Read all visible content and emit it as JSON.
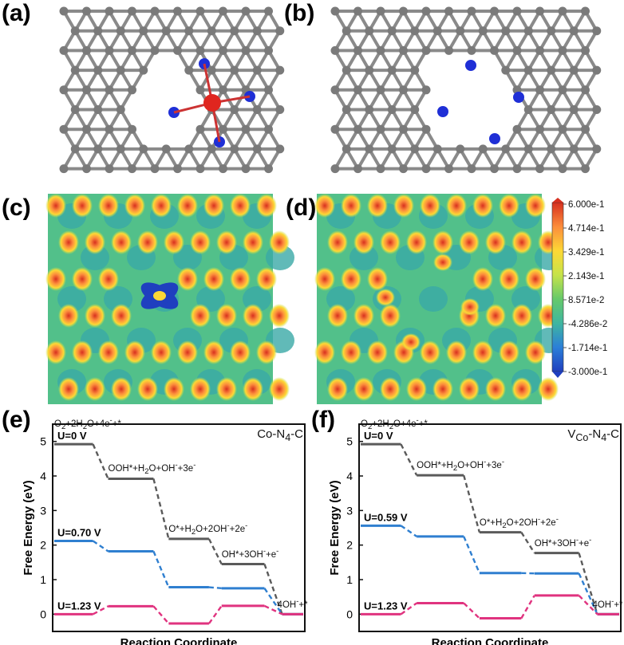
{
  "panels": {
    "a": "(a)",
    "b": "(b)",
    "c": "(c)",
    "d": "(d)",
    "e": "(e)",
    "f": "(f)"
  },
  "colorbar": {
    "ticks": [
      "6.000e-1",
      "4.714e-1",
      "3.429e-1",
      "2.143e-1",
      "8.571e-2",
      "-4.286e-2",
      "-1.714e-1",
      "-3.000e-1"
    ],
    "colors": [
      "#d7301f",
      "#fc8d3c",
      "#fdd835",
      "#c6e34a",
      "#66c96a",
      "#3fb6a0",
      "#2b7fd8",
      "#1f3fbf"
    ]
  },
  "atom_colors": {
    "carbon": "#7a7a7a",
    "nitrogen": "#1f2fd6",
    "cobalt": "#e0261f",
    "oxygen": "#e0261f"
  },
  "chart_data": [
    {
      "type": "line",
      "panel": "e",
      "title": "Co-N4-C",
      "title_parts": {
        "base": "Co-N",
        "sub": "4",
        "tail": "-C"
      },
      "xlabel": "Reaction Coordinate",
      "ylabel": "Free Energy (eV)",
      "ylim": [
        -0.5,
        5.5
      ],
      "yticks": [
        "0",
        "1",
        "2",
        "3",
        "4",
        "5"
      ],
      "step_labels": [
        {
          "html": "O<sub>2</sub>+2H<sub>2</sub>O+4e<sup>-</sup>+*"
        },
        {
          "html": "OOH*+H<sub>2</sub>O+OH<sup>-</sup>+3e<sup>-</sup>"
        },
        {
          "html": "O*+H<sub>2</sub>O+2OH<sup>-</sup>+2e<sup>-</sup>"
        },
        {
          "html": "OH*+3OH<sup>-</sup>+e<sup>-</sup>"
        },
        {
          "html": "4OH<sup>-</sup>+*"
        }
      ],
      "series": [
        {
          "name": "U=0 V",
          "color": "#5a5a5a",
          "values": [
            4.92,
            3.92,
            2.18,
            1.45,
            0.0
          ]
        },
        {
          "name": "U=0.70 V",
          "color": "#2f7fd0",
          "values": [
            2.12,
            1.82,
            0.78,
            0.75,
            0.0
          ]
        },
        {
          "name": "U=1.23 V",
          "color": "#e0337f",
          "values": [
            0.0,
            0.23,
            -0.27,
            0.24,
            0.0
          ]
        }
      ]
    },
    {
      "type": "line",
      "panel": "f",
      "title": "VCo-N4-C",
      "title_parts": {
        "base": "V",
        "sub1": "Co",
        "mid": "-N",
        "sub2": "4",
        "tail": "-C"
      },
      "xlabel": "Reaction Coordinate",
      "ylabel": "Free Energy (eV)",
      "ylim": [
        -0.5,
        5.5
      ],
      "yticks": [
        "0",
        "1",
        "2",
        "3",
        "4",
        "5"
      ],
      "step_labels": [
        {
          "html": "O<sub>2</sub>+2H<sub>2</sub>O+4e<sup>-</sup>+*"
        },
        {
          "html": "OOH*+H<sub>2</sub>O+OH<sup>-</sup>+3e<sup>-</sup>"
        },
        {
          "html": "O*+H<sub>2</sub>O+2OH<sup>-</sup>+2e<sup>-</sup>"
        },
        {
          "html": "OH*+3OH<sup>-</sup>+e<sup>-</sup>"
        },
        {
          "html": "4OH<sup>-</sup>+*"
        }
      ],
      "series": [
        {
          "name": "U=0 V",
          "color": "#5a5a5a",
          "values": [
            4.92,
            4.02,
            2.37,
            1.77,
            0.0
          ]
        },
        {
          "name": "U=0.59 V",
          "color": "#2f7fd0",
          "values": [
            2.56,
            2.25,
            1.19,
            1.18,
            0.0
          ]
        },
        {
          "name": "U=1.23 V",
          "color": "#e0337f",
          "values": [
            0.0,
            0.32,
            -0.12,
            0.54,
            0.0
          ]
        }
      ]
    }
  ]
}
